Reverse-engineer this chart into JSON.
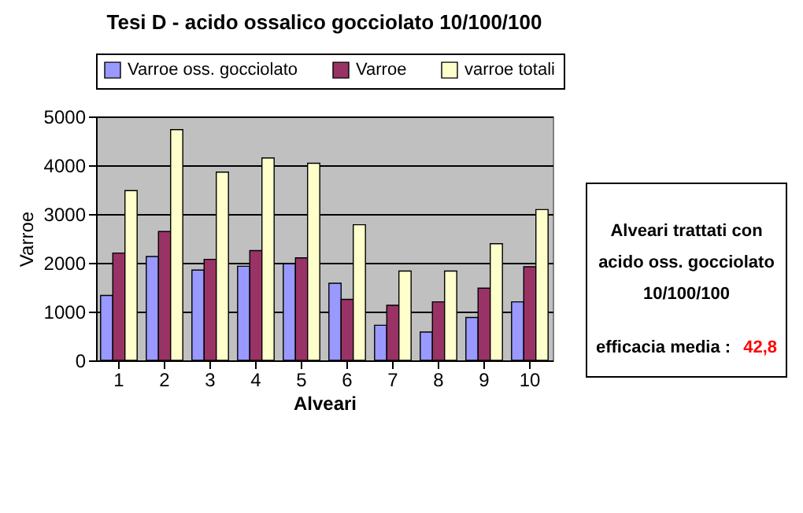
{
  "chart_data": {
    "type": "bar",
    "title": "Tesi D - acido ossalico gocciolato 10/100/100",
    "xlabel": "Alveari",
    "ylabel": "Varroe",
    "categories": [
      "1",
      "2",
      "3",
      "4",
      "5",
      "6",
      "7",
      "8",
      "9",
      "10"
    ],
    "series": [
      {
        "name": "Varroe oss. gocciolato",
        "color": "#9999ff",
        "values": [
          1330,
          2130,
          1850,
          1930,
          1980,
          1580,
          720,
          580,
          880,
          1200
        ]
      },
      {
        "name": "Varroe",
        "color": "#993366",
        "values": [
          2200,
          2640,
          2070,
          2250,
          2100,
          1250,
          1130,
          1200,
          1480,
          1920
        ]
      },
      {
        "name": "varroe totali",
        "color": "#ffffcc",
        "values": [
          3480,
          4730,
          3860,
          4150,
          4040,
          2780,
          1830,
          1830,
          2390,
          3090
        ]
      }
    ],
    "ylim": [
      0,
      5000
    ],
    "yticks": [
      0,
      1000,
      2000,
      3000,
      4000,
      5000
    ],
    "grid": "y",
    "legend": "top",
    "annotations": [
      "Alveari trattati con acido oss. gocciolato 10/100/100",
      "efficacia media :",
      "42,8"
    ]
  }
}
